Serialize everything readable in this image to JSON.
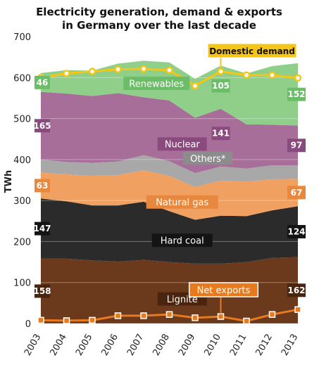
{
  "chart_data": {
    "type": "area",
    "title_lines": [
      "Electricity generation, demand & exports",
      "in Germany over the last decade"
    ],
    "ylabel": "TWh",
    "ylim": [
      0,
      700
    ],
    "yticks": [
      0,
      100,
      200,
      300,
      400,
      500,
      600,
      700
    ],
    "x": [
      "2003",
      "2004",
      "2005",
      "2006",
      "2007",
      "2008",
      "2009",
      "2010",
      "2011",
      "2012",
      "2013"
    ],
    "grid": true,
    "series": [
      {
        "name": "Lignite",
        "color": "#6b3a1c",
        "values": [
          158,
          158,
          154,
          151,
          155,
          150,
          146,
          146,
          150,
          160,
          162
        ],
        "start_label": "158",
        "end_label": "162"
      },
      {
        "name": "Hard coal",
        "color": "#2b2b2b",
        "values": [
          147,
          140,
          134,
          137,
          142,
          124,
          107,
          117,
          112,
          116,
          124
        ],
        "start_label": "147",
        "end_label": "124"
      },
      {
        "name": "Natural gas",
        "color": "#f0a060",
        "values": [
          63,
          66,
          72,
          74,
          77,
          86,
          80,
          86,
          84,
          76,
          67
        ],
        "start_label": "63",
        "end_label": "67"
      },
      {
        "name": "Others*",
        "color": "#a8a8a8",
        "values": [
          32,
          30,
          32,
          33,
          37,
          36,
          34,
          34,
          32,
          34,
          33
        ]
      },
      {
        "name": "Nuclear",
        "color": "#a86e9a",
        "values": [
          165,
          167,
          163,
          167,
          141,
          148,
          135,
          141,
          108,
          99,
          97
        ],
        "start_label": "165",
        "mid_label": "141",
        "end_label": "97"
      },
      {
        "name": "Renewables",
        "color": "#8fcf8a",
        "values": [
          46,
          57,
          62,
          72,
          89,
          93,
          95,
          105,
          124,
          143,
          152
        ],
        "start_label": "46",
        "mid_label": "105",
        "end_label": "152"
      }
    ],
    "lines": [
      {
        "name": "Domestic demand",
        "color": "#f5c518",
        "values": [
          600,
          610,
          615,
          620,
          621,
          618,
          580,
          615,
          606,
          606,
          599
        ]
      },
      {
        "name": "Net exports",
        "color": "#e87a1e",
        "values": [
          8,
          7,
          8,
          19,
          19,
          22,
          14,
          17,
          6,
          22,
          34
        ]
      }
    ]
  }
}
